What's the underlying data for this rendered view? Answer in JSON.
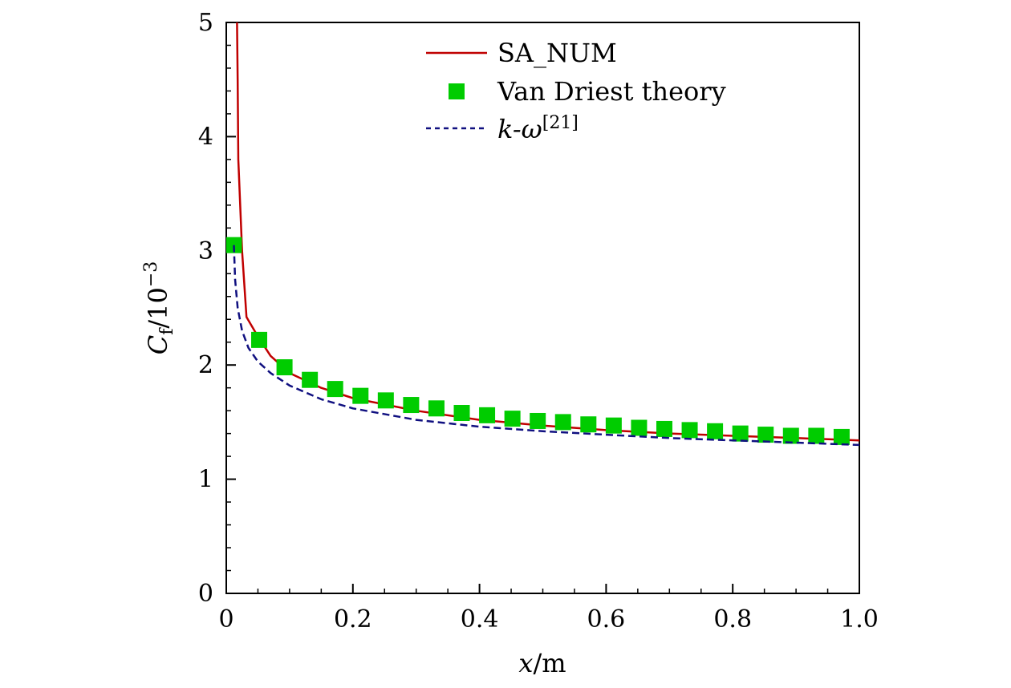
{
  "chart_data": {
    "type": "line",
    "xlim": [
      0,
      1.0
    ],
    "ylim": [
      0,
      5
    ],
    "x_ticks": [
      "0",
      "0.2",
      "0.4",
      "0.6",
      "0.8",
      "1.0"
    ],
    "y_ticks": [
      "0",
      "1",
      "2",
      "3",
      "4",
      "5"
    ],
    "xlabel": {
      "var": "x",
      "rest": "/m"
    },
    "ylabel": {
      "var": "C",
      "sub": "f",
      "rest": "/10",
      "sup": "−3"
    },
    "legend_position": "top-center",
    "series": [
      {
        "name": "SA_NUM",
        "style": "solid",
        "color": "#c00000",
        "x": [
          0.017,
          0.018,
          0.019,
          0.025,
          0.032,
          0.05,
          0.07,
          0.1,
          0.15,
          0.2,
          0.3,
          0.4,
          0.5,
          0.6,
          0.7,
          0.8,
          0.9,
          1.0
        ],
        "y": [
          5.0,
          4.5,
          3.8,
          3.0,
          2.42,
          2.25,
          2.08,
          1.93,
          1.8,
          1.71,
          1.6,
          1.52,
          1.47,
          1.43,
          1.4,
          1.38,
          1.36,
          1.34
        ]
      },
      {
        "name": "Van Driest theory",
        "style": "markers",
        "color": "#00cc00",
        "x": [
          0.012,
          0.052,
          0.092,
          0.132,
          0.172,
          0.212,
          0.252,
          0.292,
          0.332,
          0.372,
          0.412,
          0.452,
          0.492,
          0.532,
          0.572,
          0.612,
          0.652,
          0.692,
          0.732,
          0.772,
          0.812,
          0.852,
          0.892,
          0.932,
          0.972
        ],
        "y": [
          3.05,
          2.22,
          1.98,
          1.87,
          1.79,
          1.73,
          1.69,
          1.65,
          1.62,
          1.58,
          1.56,
          1.53,
          1.51,
          1.5,
          1.48,
          1.47,
          1.45,
          1.44,
          1.43,
          1.42,
          1.4,
          1.39,
          1.38,
          1.38,
          1.37
        ]
      },
      {
        "name": "k-ω",
        "name_sup": "[21]",
        "style": "dashed",
        "color": "#101080",
        "x": [
          0.012,
          0.014,
          0.018,
          0.025,
          0.035,
          0.05,
          0.07,
          0.1,
          0.15,
          0.2,
          0.3,
          0.4,
          0.5,
          0.6,
          0.7,
          0.8,
          0.9,
          1.0
        ],
        "y": [
          3.05,
          2.75,
          2.5,
          2.3,
          2.15,
          2.03,
          1.93,
          1.82,
          1.7,
          1.62,
          1.52,
          1.46,
          1.42,
          1.39,
          1.36,
          1.34,
          1.32,
          1.3
        ]
      }
    ]
  }
}
